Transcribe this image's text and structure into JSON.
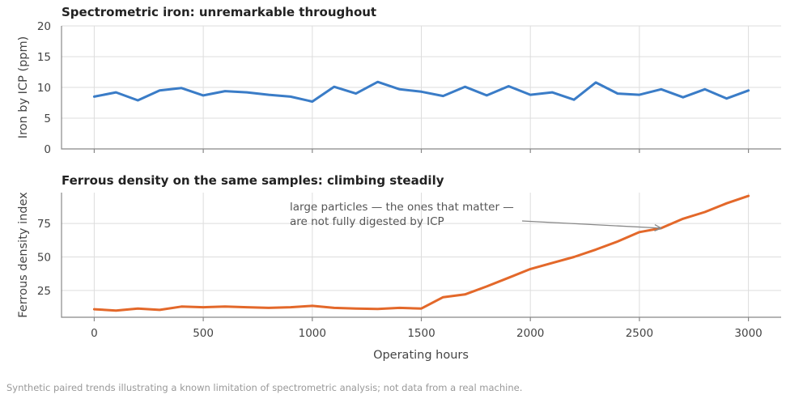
{
  "chart_data": [
    {
      "type": "line",
      "title": "Spectrometric iron: unremarkable throughout",
      "ylabel": "Iron by ICP (ppm)",
      "xlabel": "",
      "xlim": [
        -150,
        3150
      ],
      "ylim": [
        0,
        20
      ],
      "yticks": [
        0,
        5,
        10,
        15,
        20
      ],
      "grid": true,
      "color": "#3a7cc7",
      "x": [
        0,
        100,
        200,
        300,
        400,
        500,
        600,
        700,
        800,
        900,
        1000,
        1100,
        1200,
        1300,
        1400,
        1500,
        1600,
        1700,
        1800,
        1900,
        2000,
        2100,
        2200,
        2300,
        2400,
        2500,
        2600,
        2700,
        2800,
        2900,
        3000
      ],
      "values": [
        8.5,
        9.2,
        7.9,
        9.5,
        9.9,
        8.7,
        9.4,
        9.2,
        8.8,
        8.5,
        7.7,
        10.1,
        9.0,
        10.9,
        9.7,
        9.3,
        8.6,
        10.1,
        8.7,
        10.2,
        8.8,
        9.2,
        8.0,
        10.8,
        9.0,
        8.8,
        9.7,
        8.4,
        9.7,
        8.2,
        9.5
      ]
    },
    {
      "type": "line",
      "title": "Ferrous density on the same samples: climbing steadily",
      "ylabel": "Ferrous density index",
      "xlabel": "Operating hours",
      "xlim": [
        -150,
        3150
      ],
      "ylim": [
        5,
        98
      ],
      "xticks": [
        0,
        500,
        1000,
        1500,
        2000,
        2500,
        3000
      ],
      "yticks": [
        25,
        50,
        75
      ],
      "grid": true,
      "color": "#e3682a",
      "x": [
        0,
        100,
        200,
        300,
        400,
        500,
        600,
        700,
        800,
        900,
        1000,
        1100,
        1200,
        1300,
        1400,
        1500,
        1600,
        1700,
        1800,
        1900,
        2000,
        2100,
        2200,
        2300,
        2400,
        2500,
        2600,
        2700,
        2800,
        2900,
        3000
      ],
      "values": [
        11,
        10,
        11.5,
        10.5,
        13,
        12.5,
        13,
        12.5,
        12,
        12.5,
        13.5,
        12,
        11.5,
        11.2,
        12,
        11.5,
        20,
        22,
        28,
        34.5,
        41,
        45.5,
        50,
        55.5,
        61.5,
        68.5,
        71.5,
        78.5,
        83.5,
        90,
        95.5
      ],
      "annotation": {
        "lines": [
          "large particles — the ones that matter —",
          "are not fully digested by ICP"
        ],
        "arrow_to": [
          2600,
          71.5
        ]
      }
    }
  ],
  "footnote": "Synthetic paired trends illustrating a known limitation of spectrometric analysis; not data from a real machine."
}
